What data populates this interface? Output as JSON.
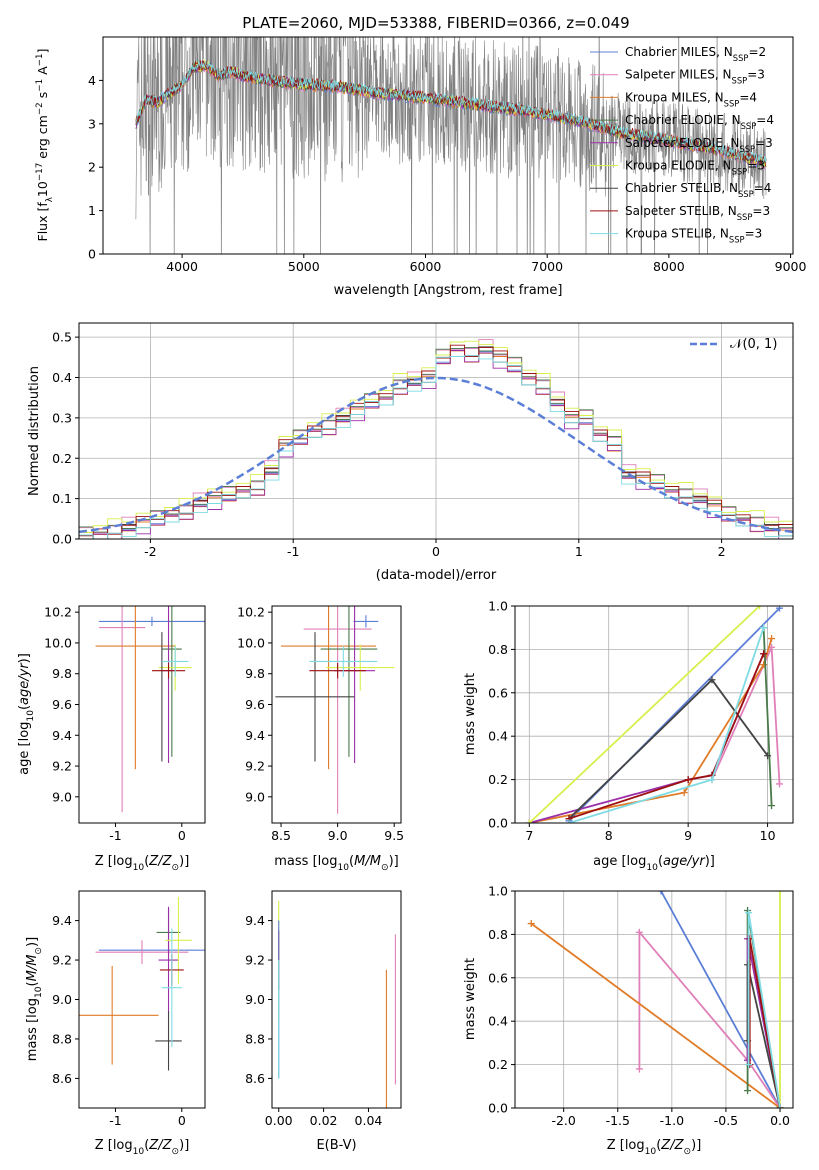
{
  "title": "PLATE=2060, MJD=53388, FIBERID=0366, z=0.049",
  "colors": {
    "chabrier_miles": "#5b7fd6",
    "salpeter_miles": "#e07fb8",
    "kroupa_miles": "#e07b28",
    "chabrier_elodie": "#4a7a4a",
    "salpeter_elodie": "#9b2fa8",
    "kroupa_elodie": "#d8ef4c",
    "chabrier_stelib": "#444444",
    "salpeter_stelib": "#9c1010",
    "kroupa_stelib": "#7fdbe3",
    "data": "#808080"
  },
  "chart_data": [
    {
      "type": "line",
      "panel": "spectrum",
      "xlabel": "wavelength [Angstrom, rest frame]",
      "ylabel_parts": [
        "Flux [f",
        "λ",
        "10",
        "−17",
        " erg cm",
        "−2",
        " s",
        "−1",
        " A",
        "−1",
        "]"
      ],
      "xlim": [
        3350,
        9020
      ],
      "ylim": [
        0,
        5.0
      ],
      "xticks": [
        4000,
        5000,
        6000,
        7000,
        8000,
        9000
      ],
      "yticks": [
        0,
        1,
        2,
        3,
        4
      ],
      "legend_pos": "right",
      "legend": [
        {
          "key": "chabrier_miles",
          "label": "Chabrier MILES, N",
          "sub": "SSP",
          "tail": "=2"
        },
        {
          "key": "salpeter_miles",
          "label": "Salpeter MILES, N",
          "sub": "SSP",
          "tail": "=3"
        },
        {
          "key": "kroupa_miles",
          "label": "Kroupa MILES, N",
          "sub": "SSP",
          "tail": "=4"
        },
        {
          "key": "chabrier_elodie",
          "label": "Chabrier ELODIE, N",
          "sub": "SSP",
          "tail": "=4"
        },
        {
          "key": "salpeter_elodie",
          "label": "Salpeter ELODIE, N",
          "sub": "SSP",
          "tail": "=3"
        },
        {
          "key": "kroupa_elodie",
          "label": "Kroupa ELODIE, N",
          "sub": "SSP",
          "tail": "=3"
        },
        {
          "key": "chabrier_stelib",
          "label": "Chabrier STELIB, N",
          "sub": "SSP",
          "tail": "=4"
        },
        {
          "key": "salpeter_stelib",
          "label": "Salpeter STELIB, N",
          "sub": "SSP",
          "tail": "=3"
        },
        {
          "key": "kroupa_stelib",
          "label": "Kroupa STELIB, N",
          "sub": "SSP",
          "tail": "=3"
        }
      ],
      "continuum": {
        "x": [
          3620,
          3700,
          3800,
          3900,
          4000,
          4100,
          4200,
          4300,
          4400,
          4500,
          4700,
          5000,
          5300,
          5600,
          6000,
          6400,
          6800,
          7200,
          7600,
          8000,
          8400,
          8800
        ],
        "y": [
          3.0,
          3.55,
          3.5,
          3.7,
          3.9,
          4.3,
          4.35,
          4.1,
          4.2,
          4.1,
          4.0,
          3.9,
          3.85,
          3.7,
          3.6,
          3.45,
          3.3,
          3.1,
          2.8,
          2.6,
          2.4,
          2.1
        ]
      }
    },
    {
      "type": "bar",
      "panel": "residuals",
      "xlabel": "(data-model)/error",
      "ylabel": "Normed distribution",
      "xlim": [
        -2.5,
        2.5
      ],
      "ylim": [
        0,
        0.535
      ],
      "xticks": [
        -2,
        -1,
        0,
        1,
        2
      ],
      "yticks": [
        0.0,
        0.1,
        0.2,
        0.3,
        0.4,
        0.5
      ],
      "legend_pos": "top-right",
      "normal_label": "𝒩(0, 1)",
      "normal_color": "#5b7fd6",
      "bins": [
        -2.5,
        -2.4,
        -2.3,
        -2.2,
        -2.1,
        -2.0,
        -1.9,
        -1.8,
        -1.7,
        -1.6,
        -1.5,
        -1.4,
        -1.3,
        -1.2,
        -1.1,
        -1.0,
        -0.9,
        -0.8,
        -0.7,
        -0.6,
        -0.5,
        -0.4,
        -0.3,
        -0.2,
        -0.1,
        0.0,
        0.1,
        0.2,
        0.3,
        0.4,
        0.5,
        0.6,
        0.7,
        0.8,
        0.9,
        1.0,
        1.1,
        1.2,
        1.3,
        1.4,
        1.5,
        1.6,
        1.7,
        1.8,
        1.9,
        2.0,
        2.1,
        2.2,
        2.3,
        2.4
      ],
      "hist": [
        0.01,
        0.015,
        0.02,
        0.03,
        0.04,
        0.05,
        0.06,
        0.07,
        0.09,
        0.1,
        0.11,
        0.12,
        0.13,
        0.17,
        0.23,
        0.25,
        0.27,
        0.28,
        0.3,
        0.32,
        0.34,
        0.35,
        0.38,
        0.39,
        0.4,
        0.45,
        0.47,
        0.46,
        0.47,
        0.45,
        0.43,
        0.4,
        0.38,
        0.34,
        0.3,
        0.3,
        0.26,
        0.24,
        0.16,
        0.15,
        0.14,
        0.12,
        0.11,
        0.1,
        0.08,
        0.06,
        0.05,
        0.04,
        0.03,
        0.02
      ],
      "series_offsets": [
        0.0,
        0.012,
        -0.01,
        0.008,
        -0.015,
        0.018,
        -0.006,
        0.004,
        -0.012
      ]
    },
    {
      "type": "scatter",
      "panel": "age-vs-Z",
      "xlabel_parts": [
        "Z [log",
        "10",
        "(",
        "Z/Z",
        "⊙",
        ")]"
      ],
      "ylabel_parts": [
        "age  [log",
        "10",
        "(",
        "age/yr",
        ")]"
      ],
      "xlim": [
        -1.55,
        0.35
      ],
      "ylim": [
        8.83,
        10.24
      ],
      "xticks": [
        -1,
        0
      ],
      "yticks": [
        9.0,
        9.2,
        9.4,
        9.6,
        9.8,
        10.0,
        10.2
      ],
      "points": [
        {
          "s": "chabrier_miles",
          "x": -0.45,
          "y": 10.14,
          "xe": 0.8,
          "ye": 0.03
        },
        {
          "s": "salpeter_miles",
          "x": -0.9,
          "y": 10.1,
          "xe": 0.35,
          "ye": 1.2
        },
        {
          "s": "kroupa_miles",
          "x": -0.7,
          "y": 9.98,
          "xe": 0.6,
          "ye": 0.8
        },
        {
          "s": "chabrier_elodie",
          "x": -0.15,
          "y": 9.96,
          "xe": 0.15,
          "ye": 0.7
        },
        {
          "s": "salpeter_elodie",
          "x": -0.2,
          "y": 9.82,
          "xe": 0.1,
          "ye": 0.6
        },
        {
          "s": "kroupa_elodie",
          "x": -0.1,
          "y": 9.84,
          "xe": 0.25,
          "ye": 0.15
        },
        {
          "s": "chabrier_stelib",
          "x": -0.3,
          "y": 9.65,
          "xe": 0.0,
          "ye": 0.42
        },
        {
          "s": "salpeter_stelib",
          "x": -0.2,
          "y": 9.82,
          "xe": 0.25,
          "ye": 0.05
        },
        {
          "s": "kroupa_stelib",
          "x": -0.1,
          "y": 9.88,
          "xe": 0.2,
          "ye": 0.1
        }
      ]
    },
    {
      "type": "scatter",
      "panel": "age-vs-mass",
      "xlabel_parts": [
        "mass [log",
        "10",
        "(",
        "M/M",
        "⊙",
        ")]"
      ],
      "xlim": [
        8.42,
        9.56
      ],
      "ylim": [
        8.83,
        10.24
      ],
      "xticks": [
        8.5,
        9.0,
        9.5
      ],
      "yticks": [
        9.0,
        9.2,
        9.4,
        9.6,
        9.8,
        10.0,
        10.2
      ],
      "points": [
        {
          "s": "chabrier_miles",
          "x": 9.25,
          "y": 10.14,
          "xe": 0.11,
          "ye": 0.04
        },
        {
          "s": "salpeter_miles",
          "x": 9.0,
          "y": 10.09,
          "xe": 0.3,
          "ye": 1.2
        },
        {
          "s": "kroupa_miles",
          "x": 8.92,
          "y": 9.98,
          "xe": 0.42,
          "ye": 0.8
        },
        {
          "s": "chabrier_elodie",
          "x": 9.1,
          "y": 9.96,
          "xe": 0.25,
          "ye": 0.7
        },
        {
          "s": "salpeter_elodie",
          "x": 9.15,
          "y": 9.82,
          "xe": 0.18,
          "ye": 0.6
        },
        {
          "s": "kroupa_elodie",
          "x": 9.2,
          "y": 9.84,
          "xe": 0.3,
          "ye": 0.15
        },
        {
          "s": "chabrier_stelib",
          "x": 8.8,
          "y": 9.65,
          "xe": 0.35,
          "ye": 0.42
        },
        {
          "s": "salpeter_stelib",
          "x": 9.0,
          "y": 9.82,
          "xe": 0.25,
          "ye": 0.05
        },
        {
          "s": "kroupa_stelib",
          "x": 9.05,
          "y": 9.88,
          "xe": 0.3,
          "ye": 0.1
        }
      ]
    },
    {
      "type": "line",
      "panel": "weight-vs-age",
      "xlabel_parts": [
        "age  [log",
        "10",
        "(",
        "age/yr",
        ")]"
      ],
      "ylabel": "mass weight",
      "xlim": [
        6.82,
        10.32
      ],
      "ylim": [
        0,
        1.0
      ],
      "xticks": [
        7,
        8,
        9,
        10
      ],
      "yticks": [
        0.0,
        0.2,
        0.4,
        0.6,
        0.8,
        1.0
      ],
      "lines": [
        {
          "s": "chabrier_miles",
          "x": [
            7.5,
            10.15
          ],
          "y": [
            0.01,
            0.99
          ]
        },
        {
          "s": "salpeter_miles",
          "x": [
            9.3,
            10.05,
            10.15
          ],
          "y": [
            0.2,
            0.81,
            0.18
          ]
        },
        {
          "s": "kroupa_miles",
          "x": [
            7.0,
            8.95,
            9.95,
            10.05
          ],
          "y": [
            0.0,
            0.14,
            0.73,
            0.85
          ]
        },
        {
          "s": "chabrier_elodie",
          "x": [
            9.95,
            10.05
          ],
          "y": [
            0.9,
            0.08
          ]
        },
        {
          "s": "salpeter_elodie",
          "x": [
            7.0,
            9.0,
            9.3,
            9.95
          ],
          "y": [
            0.0,
            0.2,
            0.22,
            0.78
          ]
        },
        {
          "s": "kroupa_elodie",
          "x": [
            7.0,
            9.9
          ],
          "y": [
            0.0,
            1.0
          ]
        },
        {
          "s": "chabrier_stelib",
          "x": [
            7.5,
            9.3,
            10.0
          ],
          "y": [
            0.02,
            0.66,
            0.31
          ]
        },
        {
          "s": "salpeter_stelib",
          "x": [
            7.5,
            9.0,
            9.3,
            9.95
          ],
          "y": [
            0.02,
            0.2,
            0.22,
            0.78
          ]
        },
        {
          "s": "kroupa_stelib",
          "x": [
            7.5,
            9.3,
            9.95
          ],
          "y": [
            0.0,
            0.2,
            0.9
          ]
        }
      ]
    },
    {
      "type": "scatter",
      "panel": "mass-vs-Z",
      "xlabel_parts": [
        "Z [log",
        "10",
        "(",
        "Z/Z",
        "⊙",
        ")]"
      ],
      "ylabel_parts": [
        "mass [log",
        "10",
        "(",
        "M/M",
        "⊙",
        ")]"
      ],
      "xlim": [
        -1.55,
        0.35
      ],
      "ylim": [
        8.45,
        9.55
      ],
      "xticks": [
        -1,
        0
      ],
      "yticks": [
        8.6,
        8.8,
        9.0,
        9.2,
        9.4
      ],
      "points": [
        {
          "s": "chabrier_miles",
          "x": -0.45,
          "y": 9.25,
          "xe": 0.8,
          "ye": 0.0
        },
        {
          "s": "salpeter_miles",
          "x": -0.6,
          "y": 9.24,
          "xe": 0.7,
          "ye": 0.06
        },
        {
          "s": "kroupa_miles",
          "x": -1.05,
          "y": 8.92,
          "xe": 0.7,
          "ye": 0.25
        },
        {
          "s": "chabrier_elodie",
          "x": -0.2,
          "y": 9.34,
          "xe": 0.18,
          "ye": 0.12
        },
        {
          "s": "salpeter_elodie",
          "x": -0.2,
          "y": 9.2,
          "xe": 0.15,
          "ye": 0.27
        },
        {
          "s": "kroupa_elodie",
          "x": -0.05,
          "y": 9.3,
          "xe": 0.2,
          "ye": 0.22
        },
        {
          "s": "chabrier_stelib",
          "x": -0.2,
          "y": 8.79,
          "xe": 0.2,
          "ye": 0.15
        },
        {
          "s": "salpeter_stelib",
          "x": -0.15,
          "y": 9.15,
          "xe": 0.18,
          "ye": 0.08
        },
        {
          "s": "kroupa_stelib",
          "x": -0.15,
          "y": 9.06,
          "xe": 0.15,
          "ye": 0.3
        }
      ]
    },
    {
      "type": "scatter",
      "panel": "mass-vs-ebv",
      "xlabel": "E(B-V)",
      "xlim": [
        -0.003,
        0.0545
      ],
      "ylim": [
        8.45,
        9.55
      ],
      "xticks": [
        0.0,
        0.02,
        0.04
      ],
      "yticks": [
        8.6,
        8.8,
        9.0,
        9.2,
        9.4
      ],
      "points": [
        {
          "s": "kroupa_elodie",
          "x": 0.0,
          "y": 9.2,
          "xe": 0.0,
          "ye": 0.3
        },
        {
          "s": "salpeter_stelib",
          "x": 0.0,
          "y": 9.2,
          "xe": 0.0,
          "ye": 0.15
        },
        {
          "s": "chabrier_miles",
          "x": 0.0,
          "y": 9.0,
          "xe": 0.0,
          "ye": 0.4
        },
        {
          "s": "kroupa_stelib",
          "x": 0.0,
          "y": 8.9,
          "xe": 0.0,
          "ye": 0.3
        },
        {
          "s": "kroupa_miles",
          "x": 0.048,
          "y": 8.8,
          "xe": 0.0,
          "ye": 0.35
        },
        {
          "s": "salpeter_miles",
          "x": 0.052,
          "y": 8.95,
          "xe": 0.0,
          "ye": 0.38
        }
      ]
    },
    {
      "type": "line",
      "panel": "weight-vs-Z",
      "xlabel_parts": [
        "Z [log",
        "10",
        "(",
        "Z/Z",
        "⊙",
        ")]"
      ],
      "ylabel": "mass weight",
      "xlim": [
        -2.45,
        0.12
      ],
      "ylim": [
        0,
        1.0
      ],
      "xticks": [
        -2.0,
        -1.5,
        -1.0,
        -0.5,
        0.0
      ],
      "yticks": [
        0.0,
        0.2,
        0.4,
        0.6,
        0.8,
        1.0
      ],
      "lines": [
        {
          "s": "chabrier_miles",
          "x": [
            -1.1,
            0.0
          ],
          "y": [
            1.0,
            0.0
          ]
        },
        {
          "s": "salpeter_miles",
          "x": [
            -1.3,
            -1.3,
            -0.3,
            0.0
          ],
          "y": [
            0.18,
            0.81,
            0.22,
            0.0
          ]
        },
        {
          "s": "kroupa_miles",
          "x": [
            -2.3,
            0.0
          ],
          "y": [
            0.85,
            0.0
          ]
        },
        {
          "s": "chabrier_elodie",
          "x": [
            -0.3,
            -0.3,
            0.0
          ],
          "y": [
            0.08,
            0.91,
            0.0
          ]
        },
        {
          "s": "salpeter_elodie",
          "x": [
            -0.3,
            -0.3,
            0.0
          ],
          "y": [
            0.22,
            0.78,
            0.0
          ]
        },
        {
          "s": "kroupa_elodie",
          "x": [
            0.0,
            0.0
          ],
          "y": [
            1.0,
            0.0
          ]
        },
        {
          "s": "chabrier_stelib",
          "x": [
            -0.3,
            -0.3,
            0.0
          ],
          "y": [
            0.31,
            0.66,
            0.0
          ]
        },
        {
          "s": "salpeter_stelib",
          "x": [
            -0.28,
            -0.28,
            0.0
          ],
          "y": [
            0.2,
            0.78,
            0.0
          ]
        },
        {
          "s": "kroupa_stelib",
          "x": [
            -0.29,
            -0.29,
            0.0
          ],
          "y": [
            0.2,
            0.9,
            0.0
          ]
        }
      ]
    }
  ]
}
